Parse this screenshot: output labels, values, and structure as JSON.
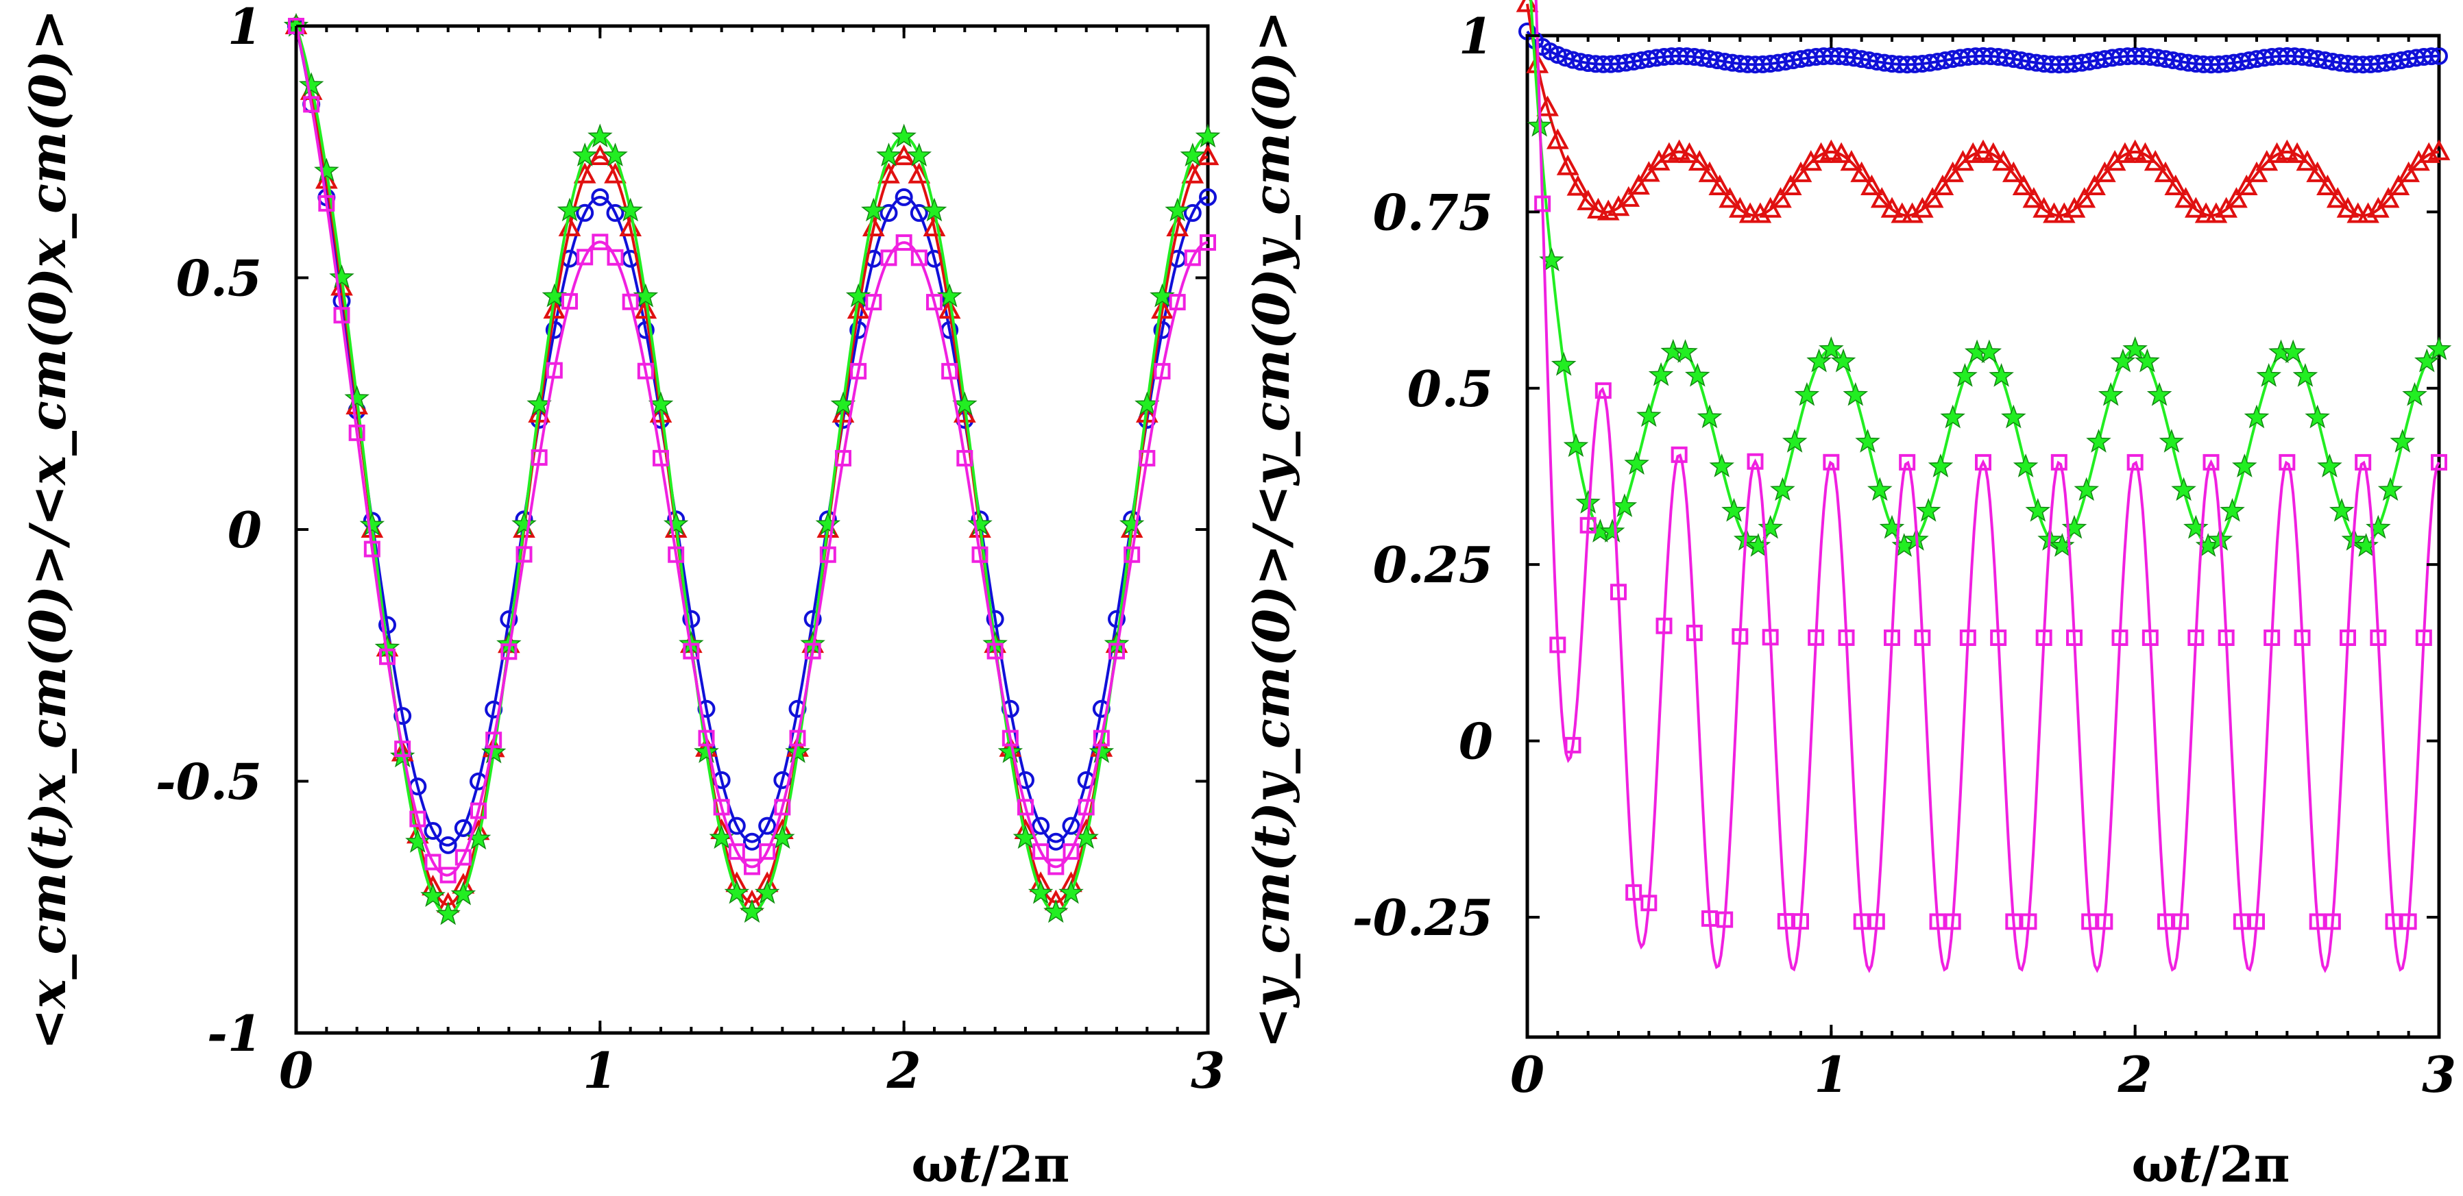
{
  "colors": {
    "blue": "#1010d8",
    "red": "#e01010",
    "green": "#22ee22",
    "magenta": "#f020e0"
  },
  "chart_data": [
    {
      "type": "line",
      "title": "",
      "xlabel_omega": "ω",
      "xlabel_t": "t",
      "xlabel_rest": "/2π",
      "ylabel_display": "<x_cm(t)x_cm(0)>/<x_cm(0)x_cm(0)>",
      "xlim": [
        0,
        3
      ],
      "ylim": [
        -1,
        1
      ],
      "xticks": [
        0,
        1,
        2,
        3
      ],
      "xtick_labels": [
        "0",
        "1",
        "2",
        "3"
      ],
      "yticks": [
        -1,
        -0.5,
        0,
        0.5,
        1
      ],
      "ytick_labels": [
        "-1",
        "-0.5",
        "0",
        "0.5",
        "1"
      ],
      "series": [
        {
          "name": "circle",
          "marker": "circle",
          "color": "blue",
          "amplitude": 0.64,
          "decay": 0.36,
          "rate": 8,
          "offset": 0.02,
          "points": 61
        },
        {
          "name": "triangle",
          "marker": "triangle",
          "color": "red",
          "amplitude": 0.74,
          "decay": 0.26,
          "rate": 8,
          "offset": 0.0,
          "points": 61
        },
        {
          "name": "star",
          "marker": "star",
          "color": "green",
          "amplitude": 0.77,
          "decay": 0.23,
          "rate": 8,
          "offset": 0.01,
          "points": 61
        },
        {
          "name": "square",
          "marker": "square",
          "color": "magenta",
          "amplitude": 0.62,
          "decay": 0.38,
          "rate": 6,
          "offset": -0.05,
          "points": 61
        }
      ]
    },
    {
      "type": "line",
      "title": "",
      "xlabel_omega": "ω",
      "xlabel_t": "t",
      "xlabel_rest": "/2π",
      "ylabel_display": "<y_cm(t)y_cm(0)>/<y_cm(0)y_cm(0)>",
      "xlim": [
        0,
        3
      ],
      "ylim": [
        -0.42,
        1
      ],
      "xticks": [
        0,
        1,
        2,
        3
      ],
      "xtick_labels": [
        "0",
        "1",
        "2",
        "3"
      ],
      "yticks": [
        -0.25,
        0,
        0.25,
        0.5,
        0.75,
        1
      ],
      "ytick_labels": [
        "-0.25",
        "0",
        "0.25",
        "0.5",
        "0.75",
        "1"
      ],
      "series": [
        {
          "name": "circle",
          "marker": "circle",
          "color": "blue",
          "mean": 0.965,
          "amp": 0.006,
          "freq": 2,
          "decay": 0.035,
          "rate": 18,
          "points": 121
        },
        {
          "name": "triangle",
          "marker": "triangle",
          "color": "red",
          "mean": 0.79,
          "amp": 0.045,
          "freq": 2,
          "decay": 0.21,
          "rate": 15,
          "points": 91
        },
        {
          "name": "star",
          "marker": "star",
          "color": "green",
          "mean": 0.415,
          "amp": 0.14,
          "freq": 2,
          "decay": 0.585,
          "rate": 14,
          "points": 76
        },
        {
          "name": "square",
          "marker": "square",
          "color": "magenta",
          "mean": 0.035,
          "amp": 0.36,
          "freq": 4,
          "decay": 0.965,
          "rate": 9,
          "points": 61
        }
      ]
    }
  ]
}
